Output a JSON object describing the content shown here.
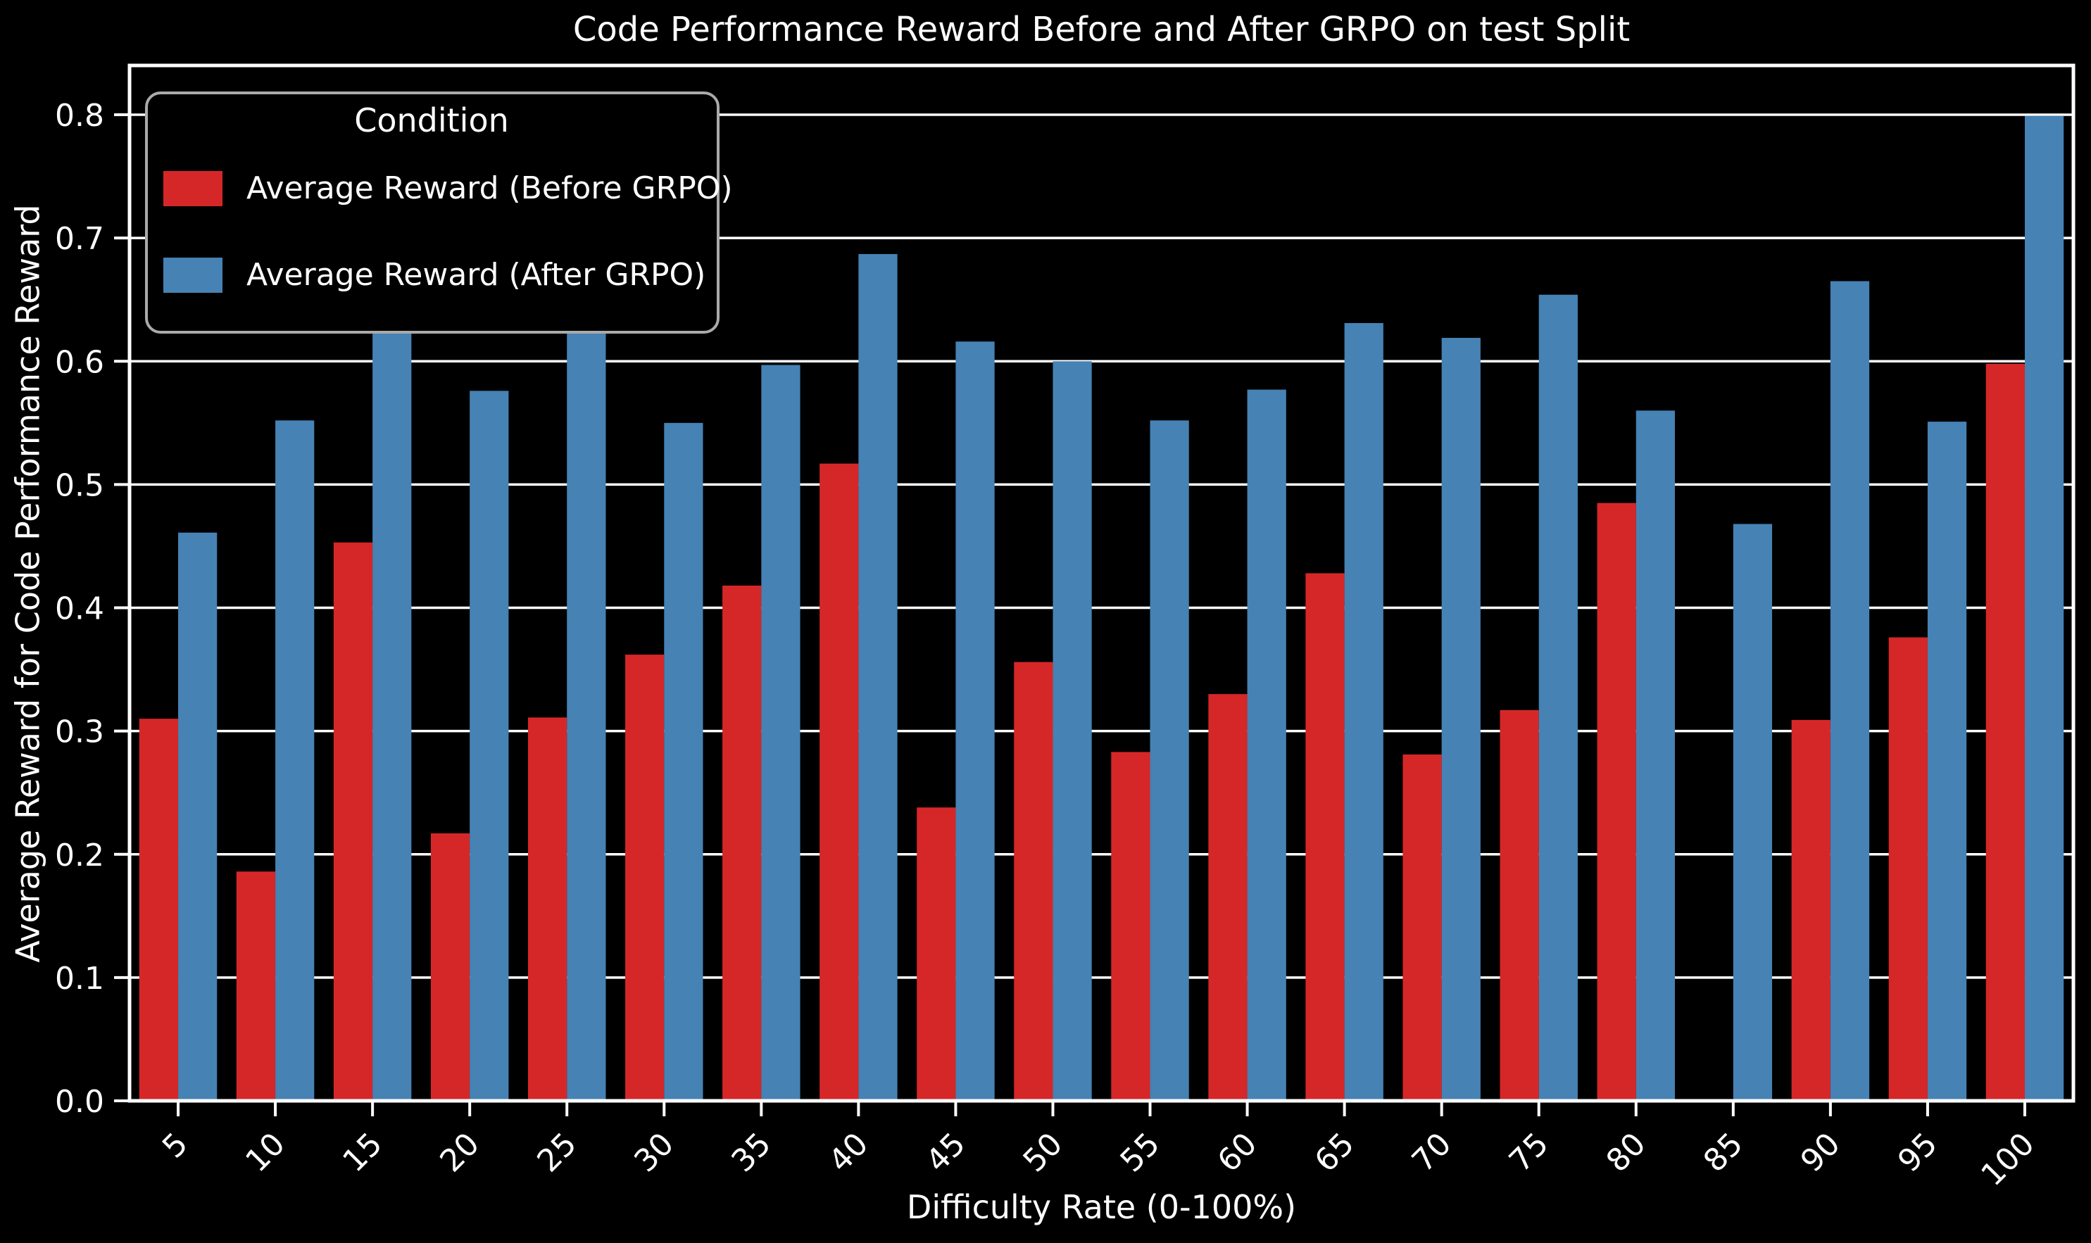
{
  "figure": {
    "title": "Code Performance Reward Before and After GRPO on test Split",
    "background_color": "#000000",
    "text_color": "#ffffff",
    "gridline_color": "#ffffff"
  },
  "legend": {
    "title": "Condition",
    "entries": [
      {
        "label": "Average Reward (Before GRPO)",
        "color": "#d62728"
      },
      {
        "label": "Average Reward (After GRPO)",
        "color": "#4682b4"
      }
    ]
  },
  "chart_data": {
    "type": "bar",
    "title": "Code Performance Reward Before and After GRPO on test Split",
    "xlabel": "Difficulty Rate (0-100%)",
    "ylabel": "Average Reward for Code Performance Reward",
    "categories": [
      "5",
      "10",
      "15",
      "20",
      "25",
      "30",
      "35",
      "40",
      "45",
      "50",
      "55",
      "60",
      "65",
      "70",
      "75",
      "80",
      "85",
      "90",
      "95",
      "100"
    ],
    "series": [
      {
        "name": "Average Reward (Before GRPO)",
        "color": "#d62728",
        "values": [
          0.31,
          0.186,
          0.453,
          0.217,
          0.311,
          0.362,
          0.418,
          0.517,
          0.238,
          0.356,
          0.283,
          0.33,
          0.428,
          0.281,
          0.317,
          0.485,
          0.0,
          0.309,
          0.376,
          0.598
        ]
      },
      {
        "name": "Average Reward (After GRPO)",
        "color": "#4682b4",
        "values": [
          0.461,
          0.552,
          0.69,
          0.576,
          0.658,
          0.55,
          0.597,
          0.687,
          0.616,
          0.6,
          0.552,
          0.577,
          0.631,
          0.619,
          0.654,
          0.56,
          0.468,
          0.665,
          0.551,
          0.799
        ]
      }
    ],
    "ylim": [
      0,
      0.84
    ],
    "yticks": [
      0.0,
      0.1,
      0.2,
      0.3,
      0.4,
      0.5,
      0.6,
      0.7,
      0.8
    ],
    "grid": "horizontal",
    "legend_position": "upper left",
    "xtick_rotation": 45
  }
}
